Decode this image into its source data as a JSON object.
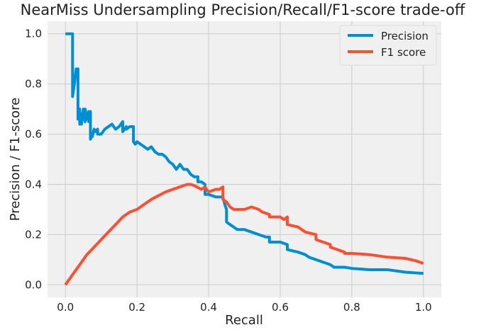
{
  "chart_data": {
    "type": "line",
    "title": "NearMiss Undersampling Precision/Recall/F1-score trade-off",
    "xlabel": "Recall",
    "ylabel": "Precision / F1-score",
    "xlim": [
      -0.05,
      1.05
    ],
    "ylim": [
      -0.05,
      1.05
    ],
    "xticks": [
      "0.0",
      "0.2",
      "0.4",
      "0.6",
      "0.8",
      "1.0"
    ],
    "yticks": [
      "0.0",
      "0.2",
      "0.4",
      "0.6",
      "0.8",
      "1.0"
    ],
    "grid": true,
    "legend_position": "top-right",
    "series": [
      {
        "name": "Precision",
        "color": "#008fd5",
        "x": [
          0.0,
          0.01,
          0.015,
          0.015,
          0.02,
          0.02,
          0.025,
          0.03,
          0.035,
          0.035,
          0.04,
          0.04,
          0.045,
          0.045,
          0.05,
          0.055,
          0.055,
          0.06,
          0.065,
          0.065,
          0.07,
          0.07,
          0.075,
          0.075,
          0.08,
          0.085,
          0.09,
          0.09,
          0.1,
          0.11,
          0.12,
          0.13,
          0.14,
          0.15,
          0.16,
          0.16,
          0.17,
          0.17,
          0.18,
          0.185,
          0.19,
          0.19,
          0.195,
          0.2,
          0.21,
          0.22,
          0.23,
          0.24,
          0.25,
          0.26,
          0.27,
          0.28,
          0.29,
          0.3,
          0.31,
          0.32,
          0.33,
          0.34,
          0.35,
          0.36,
          0.37,
          0.37,
          0.38,
          0.39,
          0.39,
          0.4,
          0.42,
          0.43,
          0.44,
          0.445,
          0.45,
          0.45,
          0.46,
          0.47,
          0.48,
          0.5,
          0.52,
          0.54,
          0.56,
          0.57,
          0.57,
          0.6,
          0.62,
          0.62,
          0.65,
          0.67,
          0.68,
          0.7,
          0.72,
          0.74,
          0.75,
          0.78,
          0.8,
          0.85,
          0.9,
          0.95,
          1.0
        ],
        "y": [
          1.0,
          1.0,
          1.0,
          1.0,
          1.0,
          0.75,
          0.8,
          0.86,
          0.86,
          0.66,
          0.7,
          0.64,
          0.68,
          0.64,
          0.7,
          0.65,
          0.7,
          0.66,
          0.69,
          0.65,
          0.69,
          0.58,
          0.6,
          0.59,
          0.62,
          0.61,
          0.62,
          0.6,
          0.6,
          0.62,
          0.63,
          0.64,
          0.62,
          0.63,
          0.65,
          0.61,
          0.63,
          0.62,
          0.63,
          0.63,
          0.63,
          0.57,
          0.56,
          0.57,
          0.56,
          0.55,
          0.54,
          0.55,
          0.53,
          0.52,
          0.52,
          0.51,
          0.49,
          0.48,
          0.46,
          0.48,
          0.46,
          0.46,
          0.44,
          0.43,
          0.43,
          0.41,
          0.41,
          0.4,
          0.36,
          0.36,
          0.35,
          0.35,
          0.35,
          0.32,
          0.3,
          0.25,
          0.24,
          0.23,
          0.22,
          0.22,
          0.21,
          0.2,
          0.19,
          0.19,
          0.17,
          0.17,
          0.16,
          0.14,
          0.13,
          0.12,
          0.11,
          0.1,
          0.09,
          0.08,
          0.07,
          0.07,
          0.065,
          0.06,
          0.06,
          0.05,
          0.045
        ]
      },
      {
        "name": "F1 score",
        "color": "#fc4f30",
        "x": [
          0.0,
          0.02,
          0.04,
          0.06,
          0.08,
          0.1,
          0.12,
          0.14,
          0.16,
          0.18,
          0.2,
          0.22,
          0.24,
          0.26,
          0.28,
          0.3,
          0.32,
          0.34,
          0.35,
          0.36,
          0.38,
          0.39,
          0.4,
          0.42,
          0.43,
          0.44,
          0.44,
          0.45,
          0.46,
          0.47,
          0.48,
          0.5,
          0.52,
          0.54,
          0.55,
          0.57,
          0.57,
          0.6,
          0.61,
          0.62,
          0.62,
          0.65,
          0.66,
          0.67,
          0.7,
          0.7,
          0.72,
          0.74,
          0.74,
          0.76,
          0.78,
          0.78,
          0.8,
          0.85,
          0.9,
          0.95,
          0.98,
          1.0
        ],
        "y": [
          0.0,
          0.04,
          0.08,
          0.12,
          0.15,
          0.18,
          0.21,
          0.24,
          0.27,
          0.29,
          0.3,
          0.32,
          0.34,
          0.355,
          0.37,
          0.38,
          0.39,
          0.4,
          0.4,
          0.395,
          0.38,
          0.39,
          0.37,
          0.38,
          0.38,
          0.39,
          0.34,
          0.33,
          0.31,
          0.3,
          0.3,
          0.3,
          0.31,
          0.3,
          0.29,
          0.28,
          0.27,
          0.27,
          0.26,
          0.27,
          0.24,
          0.23,
          0.22,
          0.21,
          0.2,
          0.18,
          0.17,
          0.16,
          0.15,
          0.14,
          0.13,
          0.125,
          0.125,
          0.12,
          0.11,
          0.105,
          0.095,
          0.085
        ]
      }
    ]
  }
}
